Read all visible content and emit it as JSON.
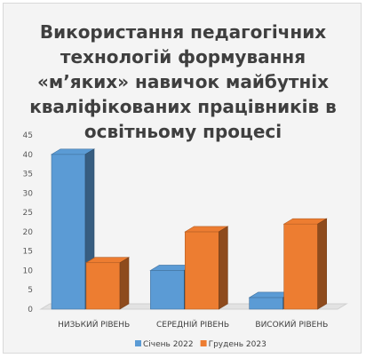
{
  "chart_data": {
    "type": "bar",
    "title": "Використання педагогічних технологій формування «м’яких» навичок майбутніх кваліфікованих працівників в освітньому процесі",
    "categories": [
      "НИЗЬКИЙ РІВЕНЬ",
      "СЕРЕДНІЙ РІВЕНЬ",
      "ВИСОКИЙ РІВЕНЬ"
    ],
    "series": [
      {
        "name": "Січень 2022",
        "values": [
          40,
          10,
          3
        ],
        "color": "#5b9bd5"
      },
      {
        "name": "Грудень 2023",
        "values": [
          12,
          20,
          22
        ],
        "color": "#ed7d31"
      }
    ],
    "ylim": [
      0,
      45
    ],
    "yticks": [
      0,
      5,
      10,
      15,
      20,
      25,
      30,
      35,
      40,
      45
    ],
    "grid": false,
    "legend": "bottom",
    "style": "3d-column"
  }
}
